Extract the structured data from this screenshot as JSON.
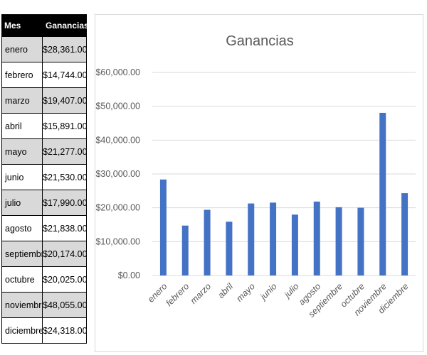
{
  "table": {
    "headers": [
      "Mes",
      "Ganancias"
    ],
    "rows": [
      {
        "mes": "enero",
        "ganancias": "$28,361.00"
      },
      {
        "mes": "febrero",
        "ganancias": "$14,744.00"
      },
      {
        "mes": "marzo",
        "ganancias": "$19,407.00"
      },
      {
        "mes": "abril",
        "ganancias": "$15,891.00"
      },
      {
        "mes": "mayo",
        "ganancias": "$21,277.00"
      },
      {
        "mes": "junio",
        "ganancias": "$21,530.00"
      },
      {
        "mes": "julio",
        "ganancias": "$17,990.00"
      },
      {
        "mes": "agosto",
        "ganancias": "$21,838.00"
      },
      {
        "mes": "septiembre",
        "ganancias": "$20,174.00"
      },
      {
        "mes": "octubre",
        "ganancias": "$20,025.00"
      },
      {
        "mes": "noviembre",
        "ganancias": "$48,055.00"
      },
      {
        "mes": "diciembre",
        "ganancias": "$24,318.00"
      }
    ],
    "colors": {
      "header_bg": "#000000",
      "header_text": "#ffffff",
      "shade": "#d9d9d9"
    }
  },
  "chart_data": {
    "type": "bar",
    "title": "Ganancias",
    "xlabel": "",
    "ylabel": "",
    "categories": [
      "enero",
      "febrero",
      "marzo",
      "abril",
      "mayo",
      "junio",
      "julio",
      "agosto",
      "septiembre",
      "octubre",
      "noviembre",
      "diciembre"
    ],
    "values": [
      28361,
      14744,
      19407,
      15891,
      21277,
      21530,
      17990,
      21838,
      20174,
      20025,
      48055,
      24318
    ],
    "ylim": [
      0,
      60000
    ],
    "yticks": [
      0,
      10000,
      20000,
      30000,
      40000,
      50000,
      60000
    ],
    "ytick_labels": [
      "$0.00",
      "$10,000.00",
      "$20,000.00",
      "$30,000.00",
      "$40,000.00",
      "$50,000.00",
      "$60,000.00"
    ],
    "grid": true,
    "legend": "none",
    "bar_color": "#4472c4",
    "grid_color": "#d9d9d9"
  }
}
